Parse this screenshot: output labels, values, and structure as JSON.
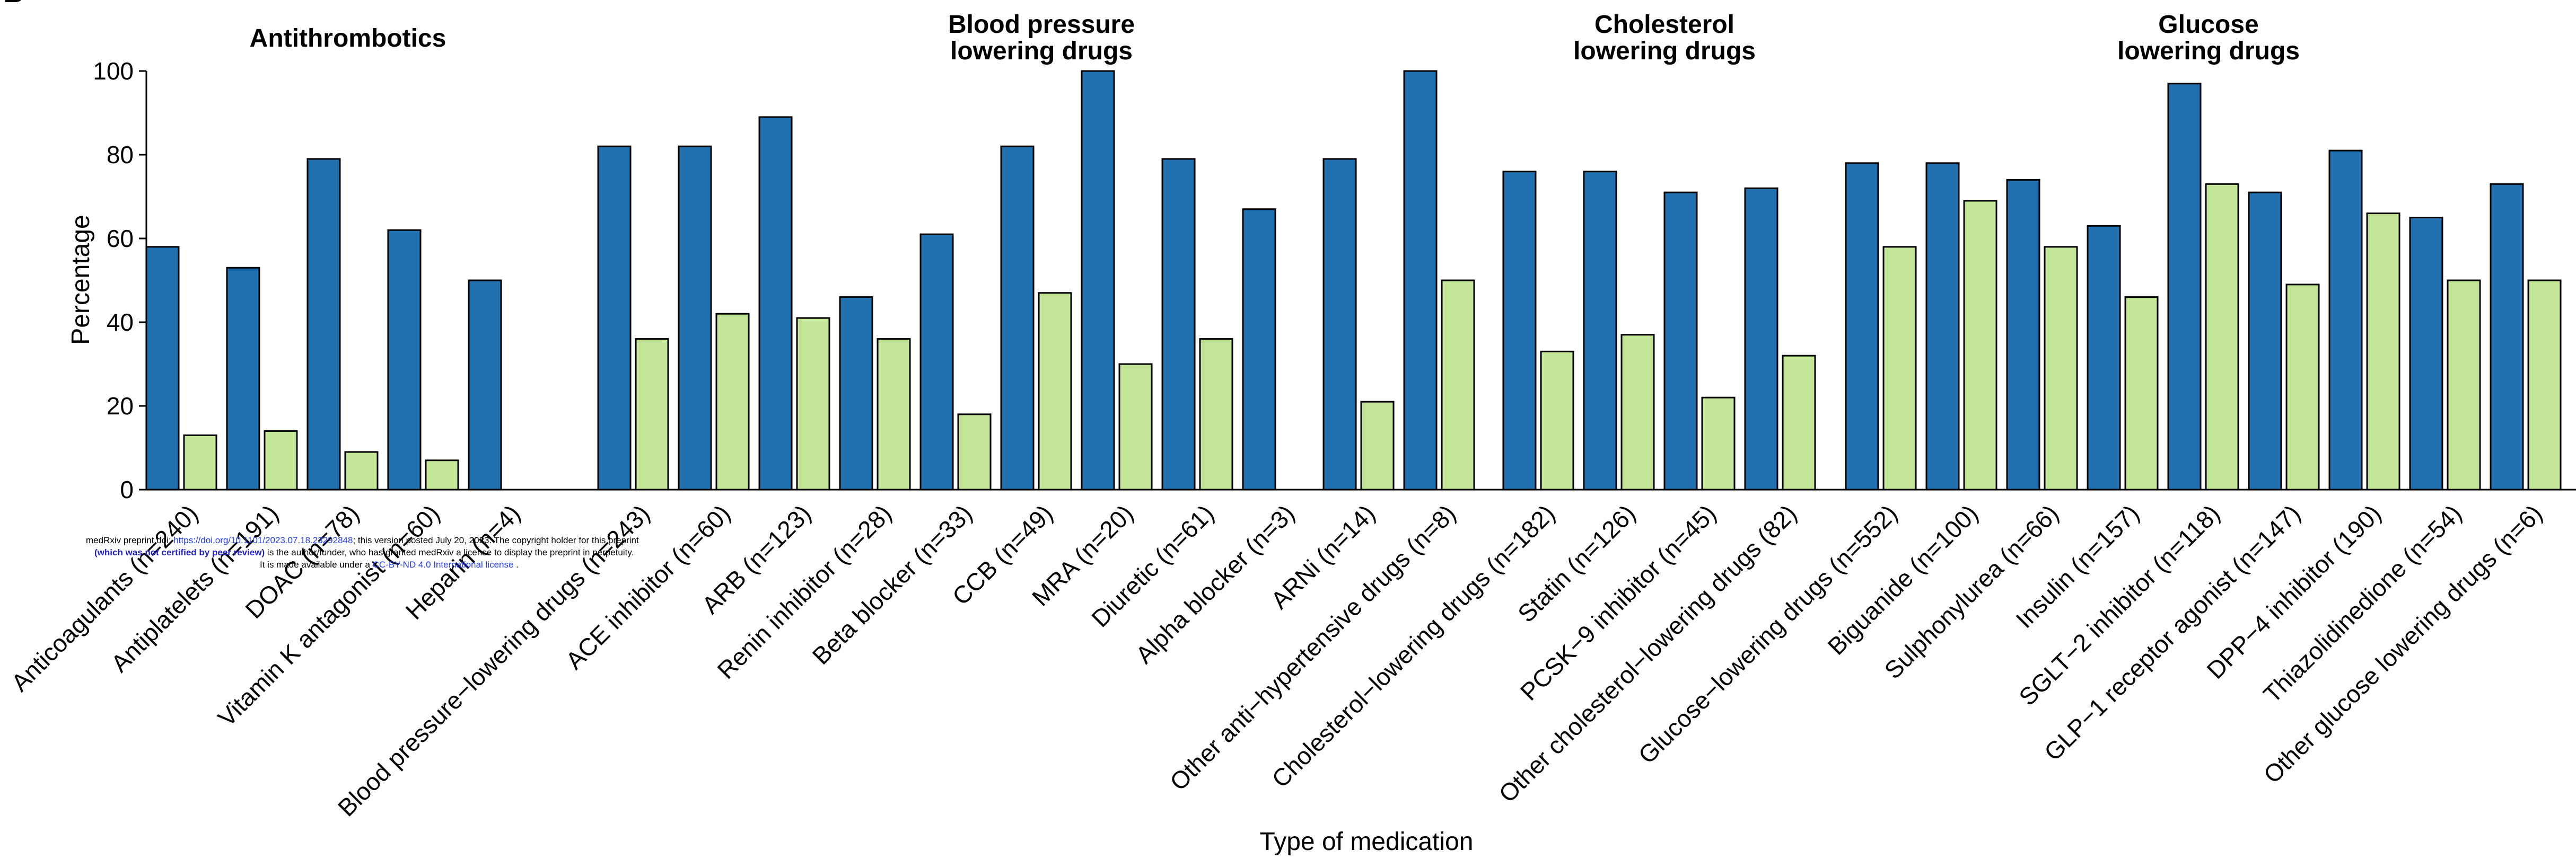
{
  "panel_letter": "B",
  "chart_data": {
    "type": "bar",
    "ylabel": "Percentage",
    "xlabel": "Type of medication",
    "ylim": [
      0,
      100
    ],
    "yticks": [
      0,
      20,
      40,
      60,
      80,
      100
    ],
    "grid": false,
    "colors": {
      "series1": "#2171b0",
      "series2": "#c3e699",
      "stroke": "#000000"
    },
    "panels": [
      {
        "title_lines": [
          "Antithrombotics"
        ],
        "categories": [
          "Anticoagulants (n=240)",
          "Antiplatelets (n=191)",
          "DOAC (n=78)",
          "Vitamin K antagonist (n=60)",
          "Heparin (n=4)"
        ],
        "series": [
          {
            "values": [
              58,
              53,
              79,
              62,
              50
            ]
          },
          {
            "values": [
              13,
              14,
              9,
              7,
              null
            ]
          }
        ]
      },
      {
        "title_lines": [
          "Blood pressure",
          "lowering drugs"
        ],
        "categories": [
          "Blood pressure−lowering drugs (n=243)",
          "ACE inhibitor (n=60)",
          "ARB (n=123)",
          "Renin inhibitor (n=28)",
          "Beta blocker (n=33)",
          "CCB (n=49)",
          "MRA (n=20)",
          "Diuretic (n=61)",
          "Alpha blocker (n=3)",
          "ARNi (n=14)",
          "Other anti−hypertensive drugs (n=8)"
        ],
        "series": [
          {
            "values": [
              82,
              82,
              89,
              46,
              61,
              82,
              100,
              79,
              67,
              79,
              100
            ]
          },
          {
            "values": [
              36,
              42,
              41,
              36,
              18,
              47,
              30,
              36,
              null,
              21,
              50
            ]
          }
        ]
      },
      {
        "title_lines": [
          "Cholesterol",
          "lowering drugs"
        ],
        "categories": [
          "Cholesterol−lowering drugs (n=182)",
          "Statin (n=126)",
          "PCSK−9 inhibitor (n=45)",
          "Other cholesterol−lowering drugs (82)"
        ],
        "series": [
          {
            "values": [
              76,
              76,
              71,
              72
            ]
          },
          {
            "values": [
              33,
              37,
              22,
              32
            ]
          }
        ]
      },
      {
        "title_lines": [
          "Glucose",
          "lowering drugs"
        ],
        "categories": [
          "Glucose−lowering drugs (n=552)",
          "Biguanide (n=100)",
          "Sulphonylurea (n=66)",
          "Insulin (n=157)",
          "SGLT−2 inhibitor (n=118)",
          "GLP−1 receptor agonist (n=147)",
          "DPP−4 inhibitor (190)",
          "Thiazolidinedione (n=54)",
          "Other glucose lowering drugs (n=6)"
        ],
        "series": [
          {
            "values": [
              78,
              78,
              74,
              63,
              97,
              71,
              81,
              65,
              73
            ]
          },
          {
            "values": [
              58,
              69,
              58,
              46,
              73,
              49,
              66,
              50,
              50
            ]
          }
        ]
      }
    ]
  },
  "watermark": {
    "line1_a": "medRxiv preprint doi: ",
    "line1_link": "https://doi.org/10.1101/2023.07.18.23292848",
    "line1_b": "; this version posted July 20, 2023. The copyright holder for this preprint",
    "line2_bold": "(which was not certified by peer review)",
    "line2_b": " is the author/funder, who has granted medRxiv a license to display the preprint in perpetuity.",
    "line3_a": "It is made available under a ",
    "line3_link": "CC-BY-ND 4.0 International license",
    "line3_b": " ."
  }
}
